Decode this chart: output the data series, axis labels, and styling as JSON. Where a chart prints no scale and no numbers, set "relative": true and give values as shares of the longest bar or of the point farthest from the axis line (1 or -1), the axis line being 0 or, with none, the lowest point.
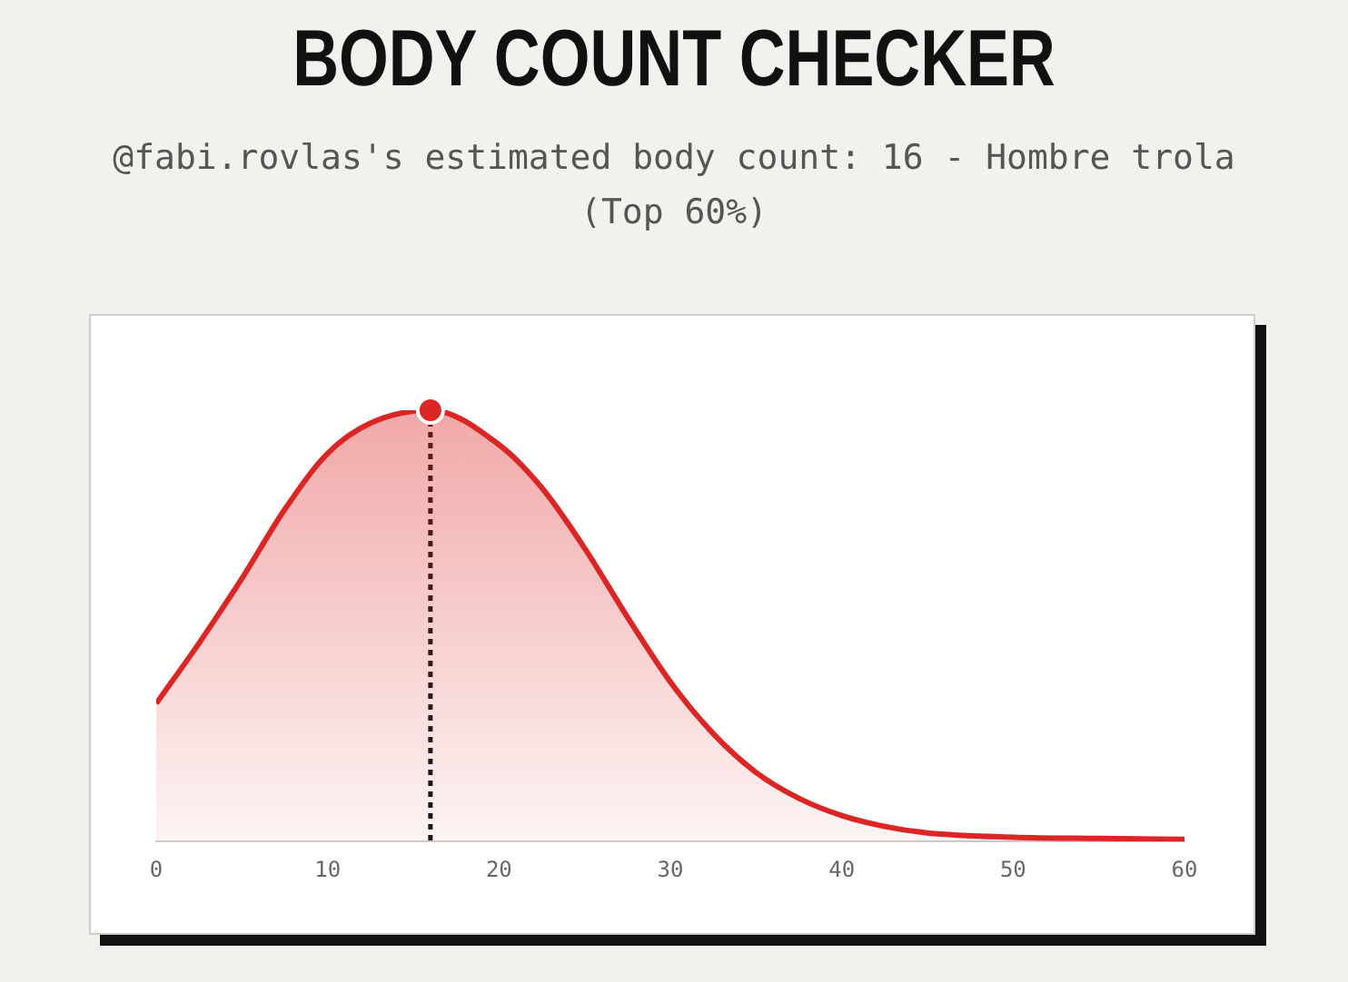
{
  "chart_data": {
    "type": "area",
    "title": "BODY COUNT CHECKER",
    "subtitle": "@fabi.rovlas's estimated body count: 16 - Hombre trola (Top 60%)",
    "relative": true,
    "xlim": [
      0,
      60
    ],
    "xticks": [
      0,
      10,
      20,
      30,
      40,
      50,
      60
    ],
    "grid": false,
    "legend": false,
    "series": [
      {
        "color": "#dc2626",
        "x": [
          0,
          2.5,
          5,
          7.5,
          10,
          12.5,
          16,
          20,
          22.5,
          25,
          27.5,
          30,
          32.5,
          35,
          37.5,
          40,
          42.5,
          45,
          50,
          55,
          60
        ],
        "values": [
          0.32,
          0.46,
          0.61,
          0.77,
          0.9,
          0.97,
          1,
          0.92,
          0.82,
          0.68,
          0.52,
          0.37,
          0.25,
          0.16,
          0.1,
          0.06,
          0.035,
          0.02,
          0.01,
          0.007,
          0.005
        ]
      },
      {
        "type": "scatter",
        "color": "#dc2626",
        "x": [
          16
        ],
        "values": [
          1
        ]
      }
    ],
    "ref_lines": [
      {
        "axis": "x",
        "value": 16,
        "color": "#111111",
        "line_style": "dotted"
      }
    ]
  }
}
